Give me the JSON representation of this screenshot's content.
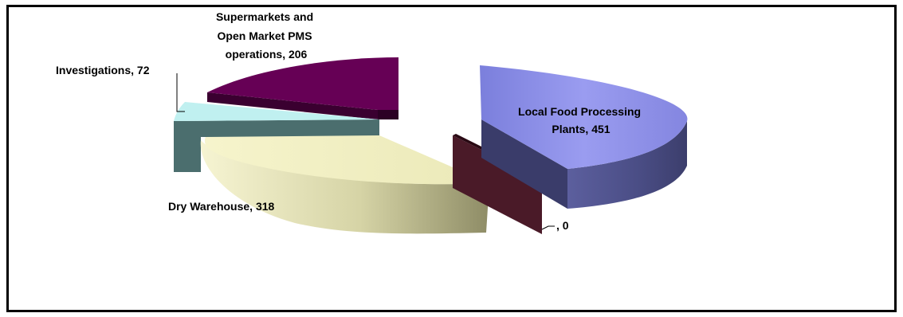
{
  "chart_data": {
    "type": "pie",
    "style": "3d-exploded",
    "title": "",
    "legend": "none",
    "slices": [
      {
        "label": "Local Food Processing Plants",
        "value": 451,
        "color": "#8c8ee6",
        "label_text": [
          "Local Food Processing",
          "Plants, 451"
        ]
      },
      {
        "label": "",
        "value": 0,
        "color": "#4a1a28",
        "label_text": [
          ", 0"
        ]
      },
      {
        "label": "Dry Warehouse",
        "value": 318,
        "color": "#f0eec0",
        "label_text": [
          "Dry Warehouse, 318"
        ]
      },
      {
        "label": "Investigations",
        "value": 72,
        "color": "#c0f0f0",
        "label_text": [
          "Investigations, 72"
        ]
      },
      {
        "label": "Supermarkets and Open Market PMS operations",
        "value": 206,
        "color": "#660055",
        "label_text": [
          "Supermarkets and",
          "Open Market PMS",
          "operations, 206"
        ]
      }
    ]
  }
}
